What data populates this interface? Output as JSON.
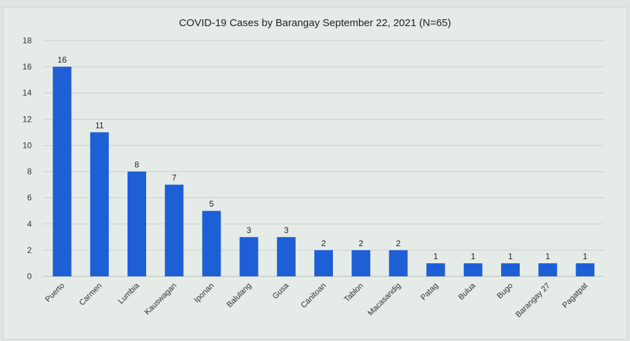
{
  "chart_data": {
    "type": "bar",
    "title": "COVID-19 Cases by Barangay September 22, 2021 (N=65)",
    "xlabel": "",
    "ylabel": "",
    "categories": [
      "Puerto",
      "Carmen",
      "Lumbia",
      "Kauswagan",
      "Iponan",
      "Balulang",
      "Gusa",
      "Canitoan",
      "Tablon",
      "Macasandig",
      "Patag",
      "Bulua",
      "Bugo",
      "Barangay 27",
      "Pagatpat"
    ],
    "values": [
      16,
      11,
      8,
      7,
      5,
      3,
      3,
      2,
      2,
      2,
      1,
      1,
      1,
      1,
      1
    ],
    "ylim": [
      0,
      18
    ],
    "yticks": [
      0,
      2,
      4,
      6,
      8,
      10,
      12,
      14,
      16,
      18
    ],
    "grid": true,
    "legend": "none",
    "bar_color": "#1f5fd6",
    "data_labels": true
  }
}
